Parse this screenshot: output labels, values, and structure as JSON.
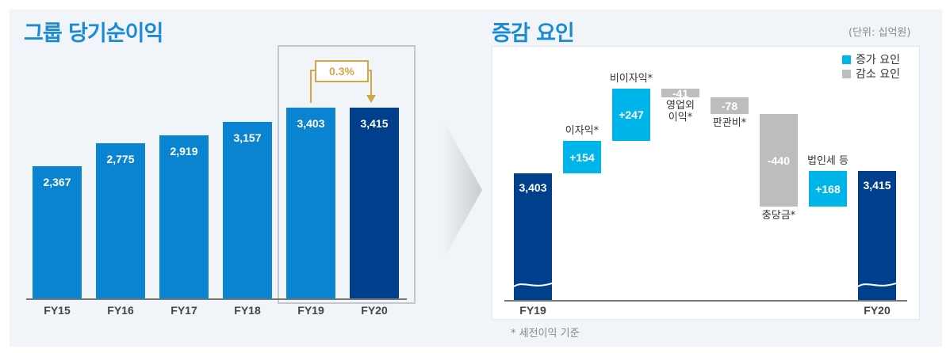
{
  "left": {
    "title": "그룹 당기순이익",
    "growth_label": "0.3%",
    "chart_data": {
      "type": "bar",
      "categories": [
        "FY15",
        "FY16",
        "FY17",
        "FY18",
        "FY19",
        "FY20"
      ],
      "values": [
        2367,
        2775,
        2919,
        3157,
        3403,
        3415
      ],
      "labels": [
        "2,367",
        "2,775",
        "2,919",
        "3,157",
        "3,403",
        "3,415"
      ],
      "highlight": [
        "FY19",
        "FY20"
      ],
      "colors": {
        "bar": "#0a84d0",
        "highlight": "#003f8c",
        "growth": "#d4a645"
      }
    }
  },
  "right": {
    "title": "증감 요인",
    "unit": "(단위: 십억원)",
    "footnote": "* 세전이익 기준",
    "legend": [
      {
        "label": "증가 요인",
        "color": "#00b5ea"
      },
      {
        "label": "감소 요인",
        "color": "#bdbdbd"
      }
    ],
    "chart_data": {
      "type": "waterfall",
      "start": {
        "category": "FY19",
        "value": 3403,
        "label": "3,403"
      },
      "steps": [
        {
          "category": "이자익*",
          "value": 154,
          "label": "+154"
        },
        {
          "category": "비이자익*",
          "value": 247,
          "label": "+247"
        },
        {
          "category": "영업외 이익*",
          "value": -41,
          "label": "-41"
        },
        {
          "category": "판관비*",
          "value": -78,
          "label": "-78"
        },
        {
          "category": "충당금*",
          "value": -440,
          "label": "-440"
        },
        {
          "category": "법인세 등",
          "value": 168,
          "label": "+168"
        }
      ],
      "end": {
        "category": "FY20",
        "value": 3415,
        "label": "3,415"
      },
      "axis_break": true,
      "colors": {
        "total": "#003f8c",
        "increase": "#00b5ea",
        "decrease": "#bdbdbd"
      }
    }
  }
}
